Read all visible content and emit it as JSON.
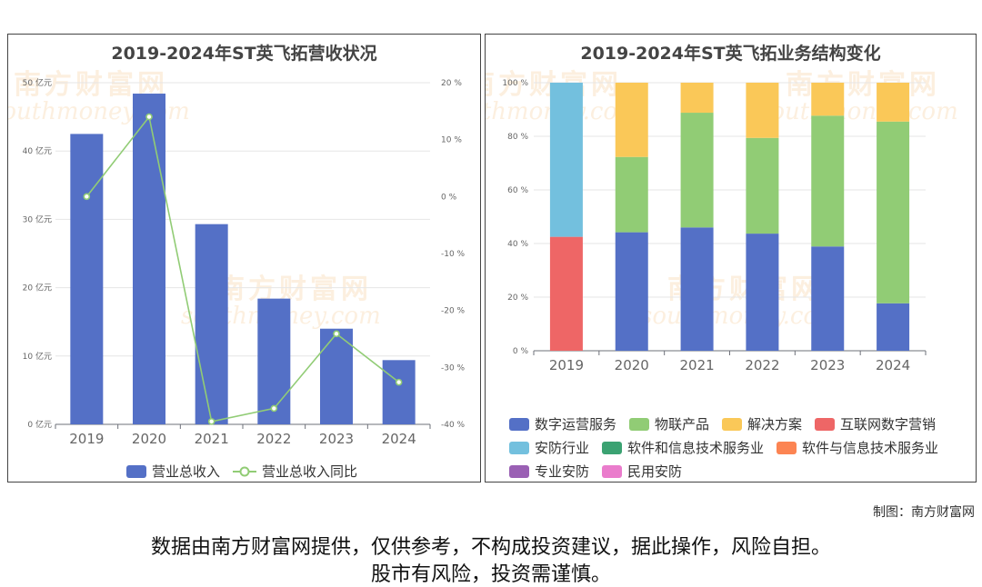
{
  "watermark": {
    "brand": "南方财富网",
    "domain": "southmoney.com"
  },
  "credit": "制图：南方财富网",
  "disclaimer": {
    "line1": "数据由南方财富网提供，仅供参考，不构成投资建议，据此操作，风险自担。",
    "line2": "股市有风险，投资需谨慎。"
  },
  "chart_data": [
    {
      "type": "bar",
      "title": "2019-2024年ST英飞拓营收状况",
      "categories": [
        "2019",
        "2020",
        "2021",
        "2022",
        "2023",
        "2024"
      ],
      "y_left": {
        "min": 0,
        "max": 50,
        "ticks": [
          "0 亿元",
          "10 亿元",
          "20 亿元",
          "30 亿元",
          "40 亿元",
          "50 亿元"
        ]
      },
      "y_right": {
        "min": -40,
        "max": 20,
        "ticks": [
          "-40 %",
          "-30 %",
          "-20 %",
          "-10 %",
          "0 %",
          "10 %",
          "20 %"
        ]
      },
      "series": [
        {
          "name": "营业总收入",
          "type": "bar",
          "axis": "left",
          "color": "#5470c6",
          "values": [
            42.5,
            48.4,
            29.3,
            18.4,
            14.0,
            9.4
          ]
        },
        {
          "name": "营业总收入同比",
          "type": "line",
          "axis": "right",
          "color": "#91cc75",
          "values": [
            0.0,
            14.0,
            -39.5,
            -37.2,
            -24.1,
            -32.6
          ]
        }
      ],
      "grid": true,
      "legend": "bottom"
    },
    {
      "type": "bar",
      "stacked": true,
      "title": "2019-2024年ST英飞拓业务结构变化",
      "categories": [
        "2019",
        "2020",
        "2021",
        "2022",
        "2023",
        "2024"
      ],
      "y": {
        "min": 0,
        "max": 100,
        "ticks": [
          "0 %",
          "20 %",
          "40 %",
          "60 %",
          "80 %",
          "100 %"
        ]
      },
      "series": [
        {
          "name": "数字运营服务",
          "color": "#5470c6",
          "values": [
            0,
            44.2,
            46.0,
            43.7,
            38.9,
            17.7
          ]
        },
        {
          "name": "物联产品",
          "color": "#91cc75",
          "values": [
            0,
            28.1,
            42.8,
            35.7,
            48.8,
            67.8
          ]
        },
        {
          "name": "解决方案",
          "color": "#fac858",
          "values": [
            0,
            27.7,
            11.2,
            20.6,
            12.3,
            14.5
          ]
        },
        {
          "name": "互联网数字营销",
          "color": "#ee6666",
          "values": [
            42.5,
            0,
            0,
            0,
            0,
            0
          ]
        },
        {
          "name": "安防行业",
          "color": "#73c0de",
          "values": [
            57.5,
            0,
            0,
            0,
            0,
            0
          ]
        },
        {
          "name": "软件和信息技术服务业",
          "color": "#3ba272",
          "values": [
            0,
            0,
            0,
            0,
            0,
            0
          ]
        },
        {
          "name": "软件与信息技术服务业",
          "color": "#fc8452",
          "values": [
            0,
            0,
            0,
            0,
            0,
            0
          ]
        },
        {
          "name": "专业安防",
          "color": "#9a60b4",
          "values": [
            0,
            0,
            0,
            0,
            0,
            0
          ]
        },
        {
          "name": "民用安防",
          "color": "#ea7ccc",
          "values": [
            0,
            0,
            0,
            0,
            0,
            0
          ]
        }
      ],
      "grid": true,
      "legend": "bottom"
    }
  ]
}
